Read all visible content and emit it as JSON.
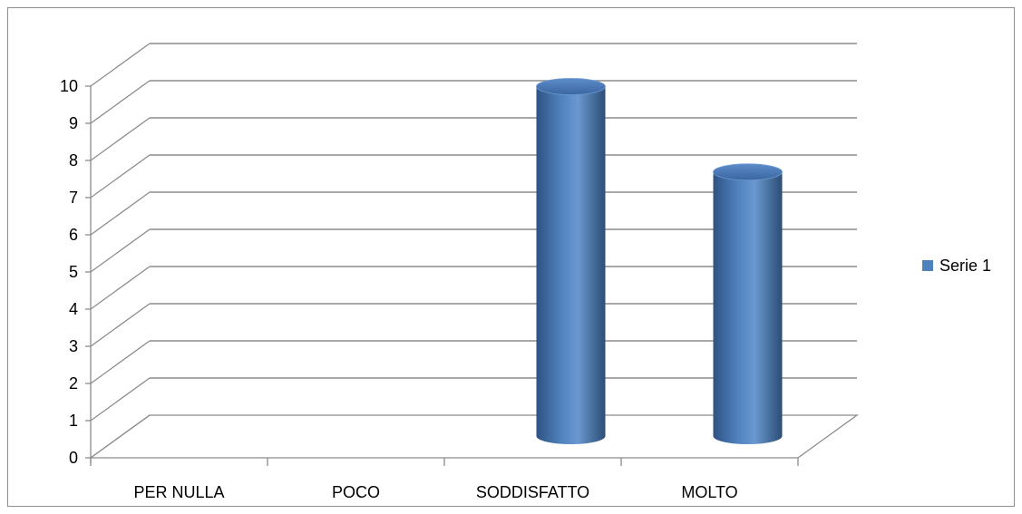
{
  "chart_data": {
    "type": "bar",
    "style": "3d-cylinder",
    "categories": [
      "PER NULLA",
      "POCO",
      "SODDISFATTO",
      "MOLTO"
    ],
    "series": [
      {
        "name": "Serie 1",
        "values": [
          0,
          0,
          9.5,
          7.2
        ],
        "color": "#4f81bd"
      }
    ],
    "ylim": [
      0,
      10
    ],
    "yticks": [
      0,
      1,
      2,
      3,
      4,
      5,
      6,
      7,
      8,
      9,
      10
    ],
    "grid": true,
    "legend_position": "right",
    "title": "",
    "xlabel": "",
    "ylabel": ""
  },
  "colors": {
    "bar_fill": "#4f81bd",
    "bar_dark": "#2c4d75",
    "grid": "#8c8c8c",
    "frame": "#8e8e8e"
  }
}
